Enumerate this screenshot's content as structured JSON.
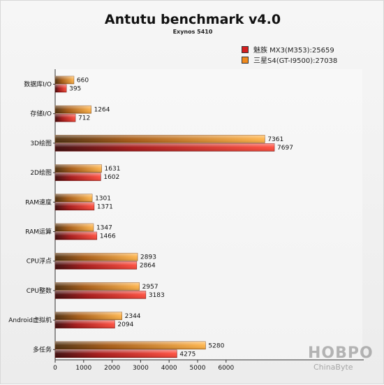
{
  "chart_data": {
    "type": "bar",
    "orientation": "horizontal",
    "title": "Antutu benchmark v4.0",
    "subtitle": "Exynos 5410",
    "categories": [
      "数据库I/O",
      "存储I/O",
      "3D绘图",
      "2D绘图",
      "RAM速度",
      "RAM运算",
      "CPU浮点",
      "CPU整数",
      "Android虚拟机",
      "多任务"
    ],
    "series": [
      {
        "name": "三星S4(GT-I9500):27038",
        "color": "#f08a1c",
        "values": [
          660,
          1264,
          7361,
          1631,
          1301,
          1347,
          2893,
          2957,
          2344,
          5280
        ]
      },
      {
        "name": "魅族 MX3(M353):25659",
        "color": "#d41e1e",
        "values": [
          395,
          712,
          7697,
          1602,
          1371,
          1466,
          2864,
          3183,
          2094,
          4275
        ]
      }
    ],
    "xlim": [
      0,
      8000
    ],
    "xticks": [
      0,
      1000,
      2000,
      3000,
      4000,
      5000,
      6000
    ],
    "legend_position": "top-right",
    "grid": false
  },
  "watermark": {
    "text": "HOBPO",
    "subtext": "ChinaByte"
  }
}
